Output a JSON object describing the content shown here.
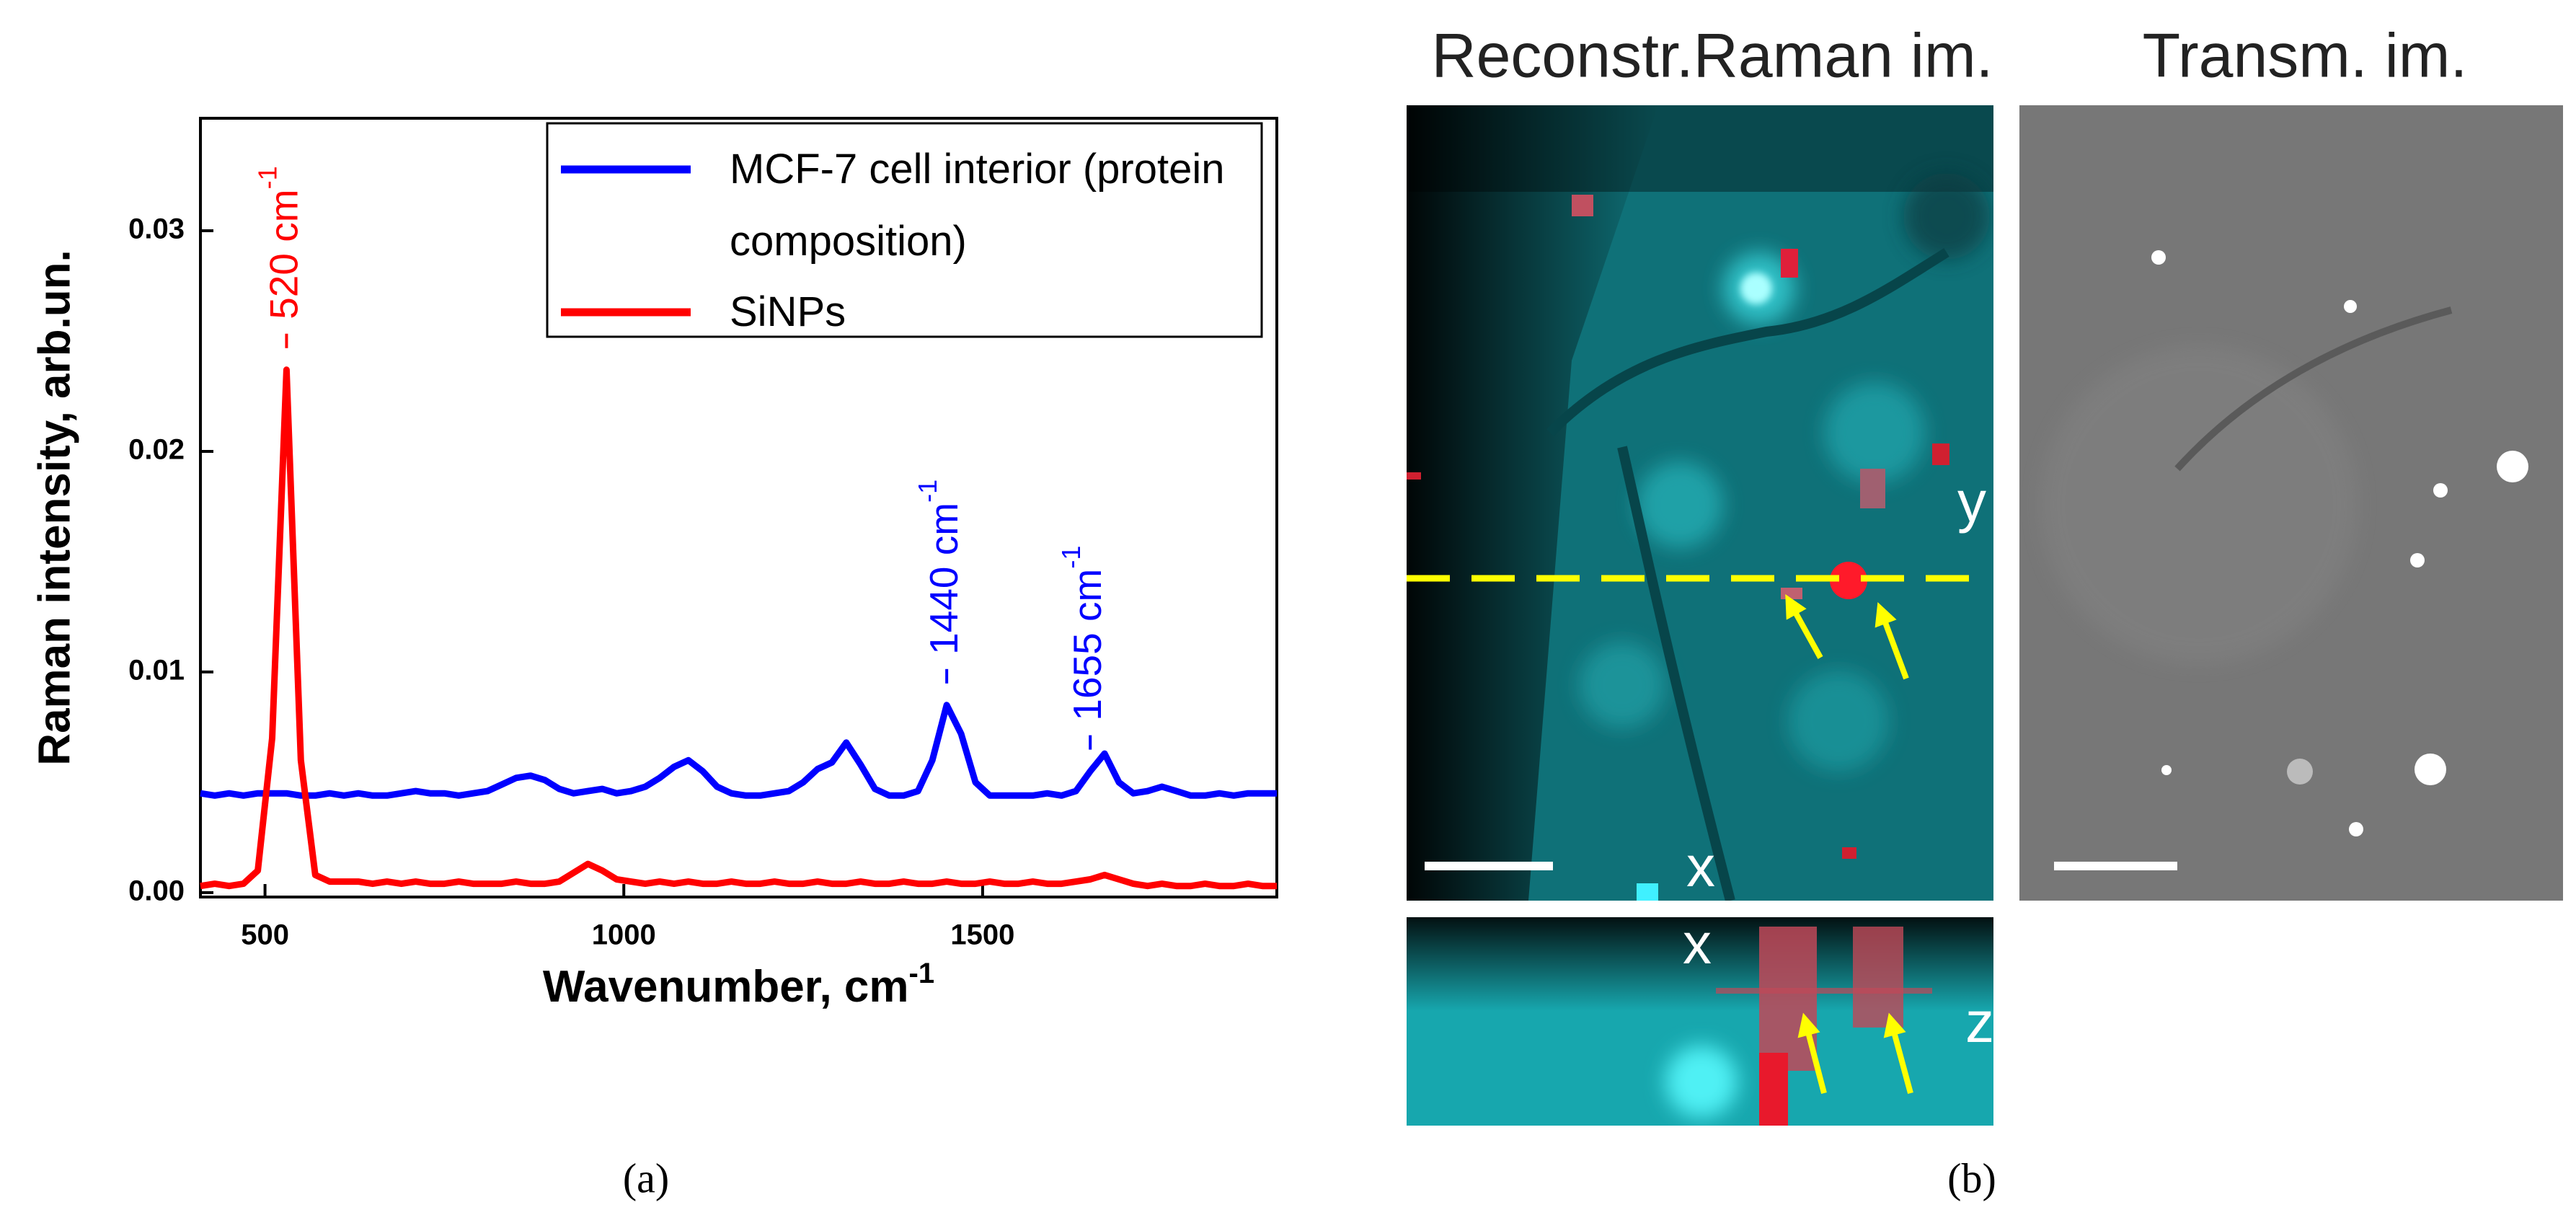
{
  "chart_data": {
    "type": "line",
    "xlabel": "Wavenumber, cm",
    "xlabel_sup": "-1",
    "ylabel": "Raman intensity, arb.un.",
    "xlim": [
      410,
      1910
    ],
    "ylim": [
      -0.0002,
      0.0351
    ],
    "xticks": [
      500,
      1000,
      1500
    ],
    "yticks": [
      {
        "value": 0,
        "label": "0.00"
      },
      0.01,
      0.02,
      0.03
    ],
    "legend": "upper right",
    "x": [
      410,
      430,
      450,
      470,
      490,
      510,
      530,
      550,
      570,
      590,
      610,
      630,
      650,
      670,
      690,
      710,
      730,
      750,
      770,
      790,
      810,
      830,
      850,
      870,
      890,
      910,
      930,
      950,
      970,
      990,
      1010,
      1030,
      1050,
      1070,
      1090,
      1110,
      1130,
      1150,
      1170,
      1190,
      1210,
      1230,
      1250,
      1270,
      1290,
      1310,
      1330,
      1350,
      1370,
      1390,
      1410,
      1430,
      1450,
      1470,
      1490,
      1510,
      1530,
      1550,
      1570,
      1590,
      1610,
      1630,
      1650,
      1670,
      1690,
      1710,
      1730,
      1750,
      1770,
      1790,
      1810,
      1830,
      1850,
      1870,
      1890,
      1910
    ],
    "series": [
      {
        "name": "MCF-7 cell interior (protein composition)",
        "color": "#0000ff",
        "values": [
          0.0045,
          0.0044,
          0.0045,
          0.0044,
          0.0045,
          0.0045,
          0.0045,
          0.0044,
          0.0044,
          0.0045,
          0.0044,
          0.0045,
          0.0044,
          0.0044,
          0.0045,
          0.0046,
          0.0045,
          0.0045,
          0.0044,
          0.0045,
          0.0046,
          0.0049,
          0.0052,
          0.0053,
          0.0051,
          0.0047,
          0.0045,
          0.0046,
          0.0047,
          0.0045,
          0.0046,
          0.0048,
          0.0052,
          0.0057,
          0.006,
          0.0055,
          0.0048,
          0.0045,
          0.0044,
          0.0044,
          0.0045,
          0.0046,
          0.005,
          0.0056,
          0.0059,
          0.0068,
          0.0058,
          0.0047,
          0.0044,
          0.0044,
          0.0046,
          0.006,
          0.0085,
          0.0072,
          0.005,
          0.0044,
          0.0044,
          0.0044,
          0.0044,
          0.0045,
          0.0044,
          0.0046,
          0.0055,
          0.0063,
          0.005,
          0.0045,
          0.0046,
          0.0048,
          0.0046,
          0.0044,
          0.0044,
          0.0045,
          0.0044,
          0.0045,
          0.0045,
          0.0045
        ]
      },
      {
        "name": "SiNPs",
        "color": "#ff0000",
        "values": [
          0.0003,
          0.0004,
          0.0003,
          0.0004,
          0.001,
          0.007,
          0.0237,
          0.006,
          0.0008,
          0.0005,
          0.0005,
          0.0005,
          0.0004,
          0.0005,
          0.0004,
          0.0005,
          0.0004,
          0.0004,
          0.0005,
          0.0004,
          0.0004,
          0.0004,
          0.0005,
          0.0004,
          0.0004,
          0.0005,
          0.0009,
          0.0013,
          0.001,
          0.0006,
          0.0005,
          0.0004,
          0.0005,
          0.0004,
          0.0005,
          0.0004,
          0.0004,
          0.0005,
          0.0004,
          0.0004,
          0.0005,
          0.0004,
          0.0004,
          0.0005,
          0.0004,
          0.0004,
          0.0005,
          0.0004,
          0.0004,
          0.0005,
          0.0004,
          0.0004,
          0.0005,
          0.0004,
          0.0004,
          0.0005,
          0.0004,
          0.0004,
          0.0005,
          0.0004,
          0.0004,
          0.0005,
          0.0006,
          0.0008,
          0.0006,
          0.0004,
          0.0003,
          0.0004,
          0.0003,
          0.0003,
          0.0004,
          0.0003,
          0.0003,
          0.0004,
          0.0003,
          0.0003
        ]
      }
    ],
    "annotations": [
      {
        "text": "520 cm",
        "sup": "-1",
        "x": 530,
        "series": 1
      },
      {
        "text": "1440 cm",
        "sup": "-1",
        "x": 1450,
        "series": 0
      },
      {
        "text": "1655 cm",
        "sup": "-1",
        "x": 1650,
        "series": 0
      }
    ]
  },
  "panel_b": {
    "raman_title": "Reconstr.Raman im.",
    "transm_title": "Transm. im.",
    "xy_labels": [
      "y",
      "x"
    ],
    "xz_labels": [
      "x",
      "z"
    ]
  },
  "captions": [
    "(a)",
    "(b)"
  ]
}
